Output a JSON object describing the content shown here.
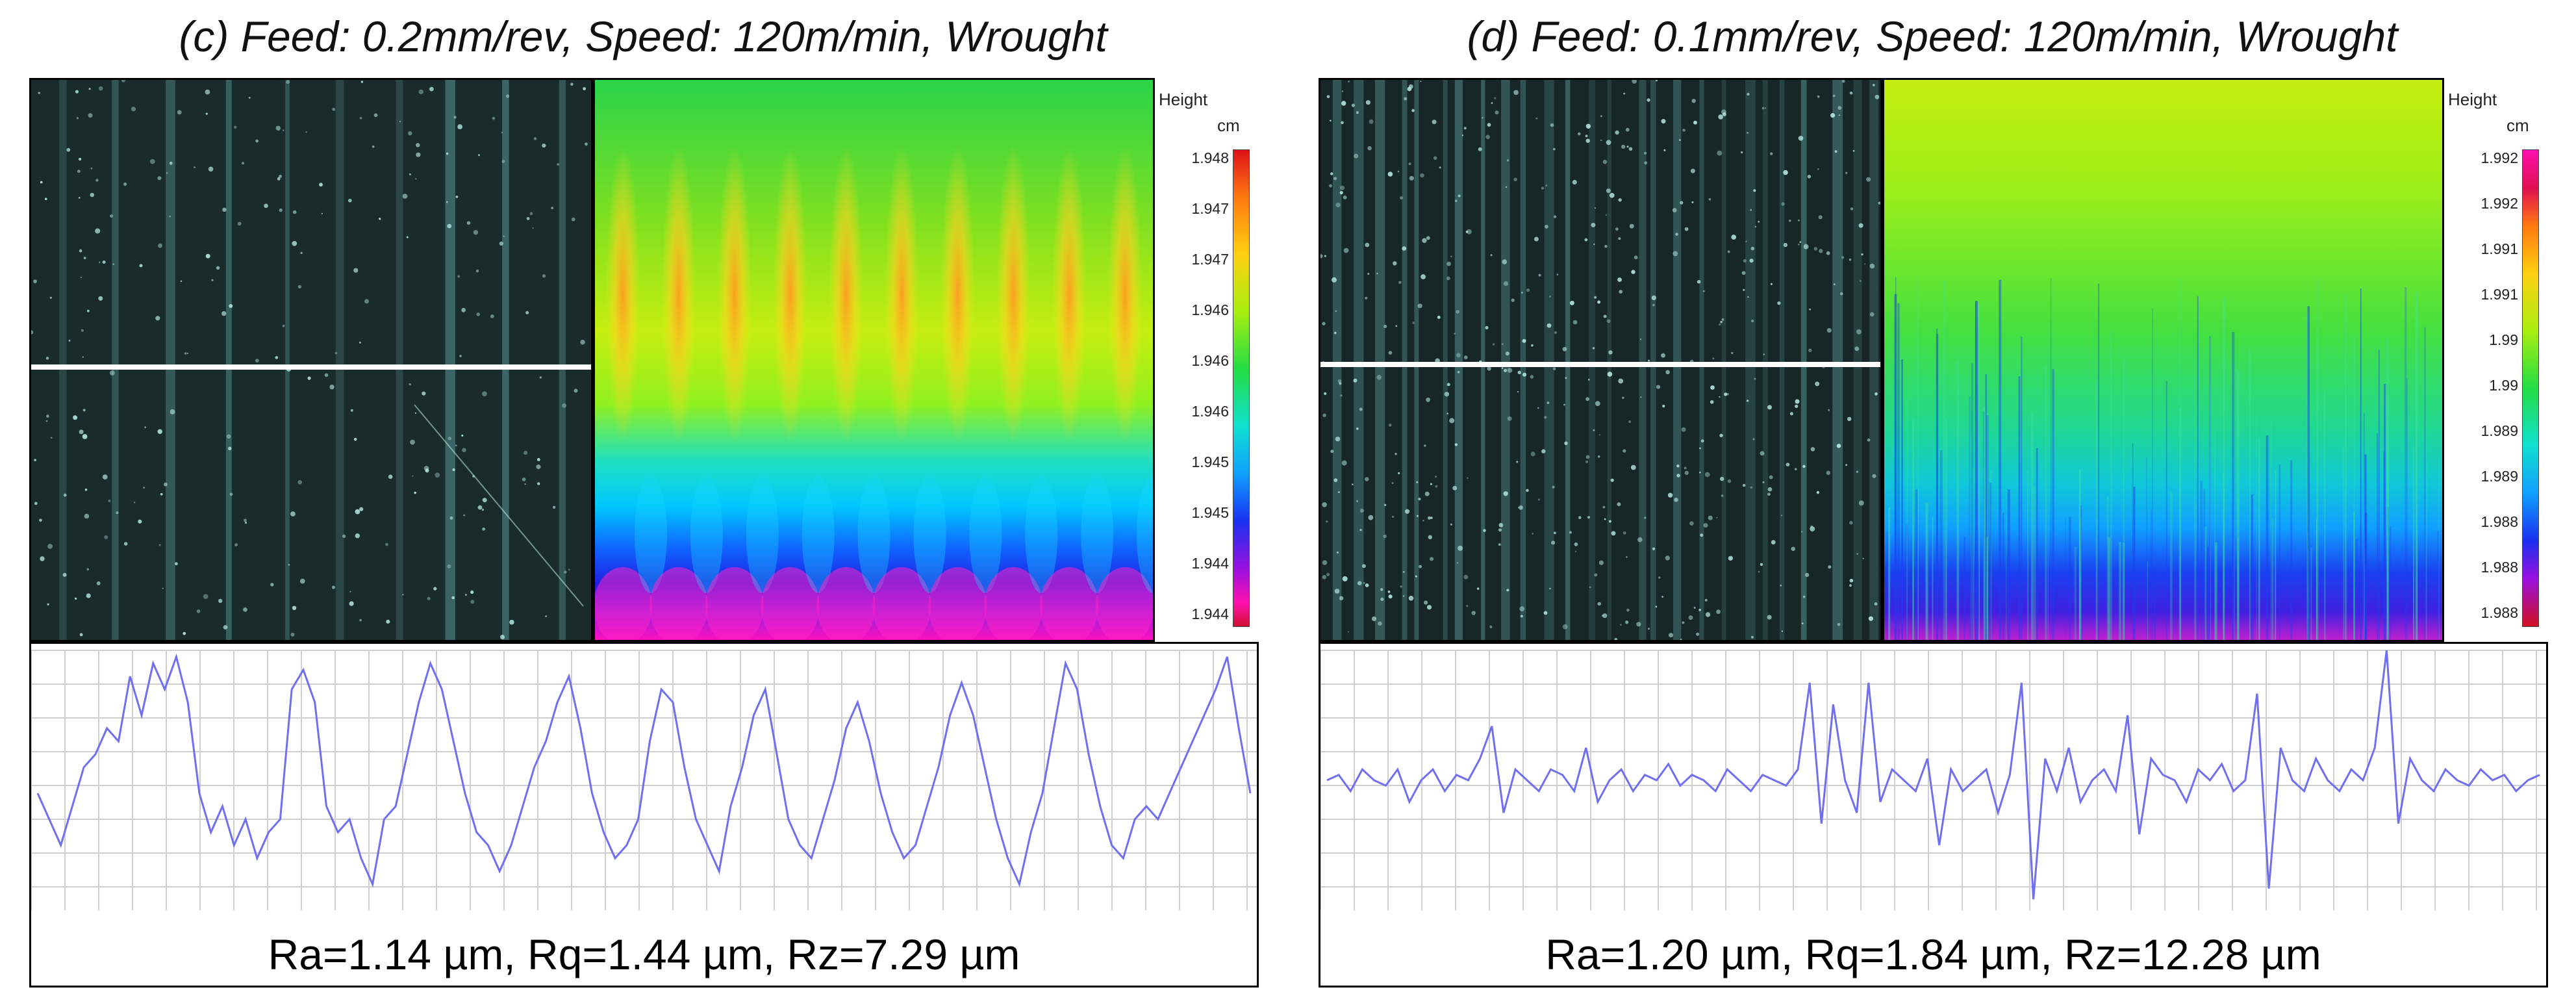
{
  "panels": [
    {
      "id": "c",
      "title": "(c) Feed: 0.2mm/rev, Speed: 120m/min, Wrought",
      "legend": {
        "title": "Height",
        "unit": "cm",
        "ticks": [
          "1.948",
          "1.947",
          "1.947",
          "1.946",
          "1.946",
          "1.946",
          "1.945",
          "1.945",
          "1.944",
          "1.944"
        ]
      },
      "metrics": "Ra=1.14 µm, Rq=1.44 µm, Rz=7.29 µm",
      "profile_data": {
        "type": "line",
        "ylim": [
          -1,
          1
        ],
        "values": [
          -0.1,
          -0.3,
          -0.5,
          -0.2,
          0.1,
          0.2,
          0.4,
          0.3,
          0.8,
          0.5,
          0.9,
          0.7,
          0.95,
          0.6,
          -0.1,
          -0.4,
          -0.2,
          -0.5,
          -0.3,
          -0.6,
          -0.4,
          -0.3,
          0.7,
          0.85,
          0.6,
          -0.2,
          -0.4,
          -0.3,
          -0.6,
          -0.8,
          -0.3,
          -0.2,
          0.2,
          0.6,
          0.9,
          0.7,
          0.3,
          -0.1,
          -0.4,
          -0.5,
          -0.7,
          -0.5,
          -0.2,
          0.1,
          0.3,
          0.6,
          0.8,
          0.4,
          -0.1,
          -0.4,
          -0.6,
          -0.5,
          -0.3,
          0.3,
          0.7,
          0.6,
          0.1,
          -0.3,
          -0.5,
          -0.7,
          -0.2,
          0.1,
          0.5,
          0.7,
          0.2,
          -0.3,
          -0.5,
          -0.6,
          -0.3,
          0.0,
          0.4,
          0.6,
          0.3,
          -0.1,
          -0.4,
          -0.6,
          -0.5,
          -0.2,
          0.1,
          0.5,
          0.75,
          0.5,
          0.1,
          -0.3,
          -0.6,
          -0.8,
          -0.4,
          -0.1,
          0.4,
          0.9,
          0.7,
          0.2,
          -0.2,
          -0.5,
          -0.6,
          -0.3,
          -0.2,
          -0.3,
          -0.1,
          0.1,
          0.3,
          0.5,
          0.7,
          0.95,
          0.4,
          -0.1
        ]
      }
    },
    {
      "id": "d",
      "title": "(d) Feed: 0.1mm/rev, Speed: 120m/min, Wrought",
      "legend": {
        "title": "Height",
        "unit": "cm",
        "ticks": [
          "1.992",
          "1.992",
          "1.991",
          "1.991",
          "1.99",
          "1.99",
          "1.989",
          "1.989",
          "1.988",
          "1.988",
          "1.988"
        ]
      },
      "metrics": "Ra=1.20 µm, Rq=1.84 µm, Rz=12.28 µm",
      "profile_data": {
        "type": "line",
        "ylim": [
          -1.2,
          1.2
        ],
        "values": [
          0.0,
          0.05,
          -0.1,
          0.1,
          0.0,
          -0.05,
          0.1,
          -0.2,
          0.0,
          0.1,
          -0.1,
          0.05,
          0.0,
          0.2,
          0.5,
          -0.3,
          0.1,
          0.0,
          -0.1,
          0.1,
          0.05,
          -0.1,
          0.3,
          -0.2,
          0.0,
          0.1,
          -0.1,
          0.05,
          0.0,
          0.15,
          -0.05,
          0.05,
          0.0,
          -0.1,
          0.1,
          0.0,
          -0.1,
          0.05,
          0.0,
          -0.05,
          0.1,
          0.9,
          -0.4,
          0.7,
          0.0,
          -0.3,
          0.9,
          -0.2,
          0.1,
          0.0,
          -0.1,
          0.2,
          -0.6,
          0.1,
          -0.1,
          0.0,
          0.1,
          -0.3,
          0.05,
          0.9,
          -1.1,
          0.2,
          -0.1,
          0.3,
          -0.2,
          0.0,
          0.1,
          -0.1,
          0.6,
          -0.5,
          0.2,
          0.05,
          0.0,
          -0.2,
          0.1,
          0.0,
          0.15,
          -0.1,
          0.0,
          0.8,
          -1.0,
          0.3,
          0.0,
          -0.1,
          0.2,
          0.0,
          -0.1,
          0.1,
          0.0,
          0.3,
          1.2,
          -0.4,
          0.2,
          0.0,
          -0.1,
          0.1,
          0.0,
          -0.05,
          0.1,
          0.0,
          0.05,
          -0.1,
          0.0,
          0.05
        ]
      }
    }
  ]
}
